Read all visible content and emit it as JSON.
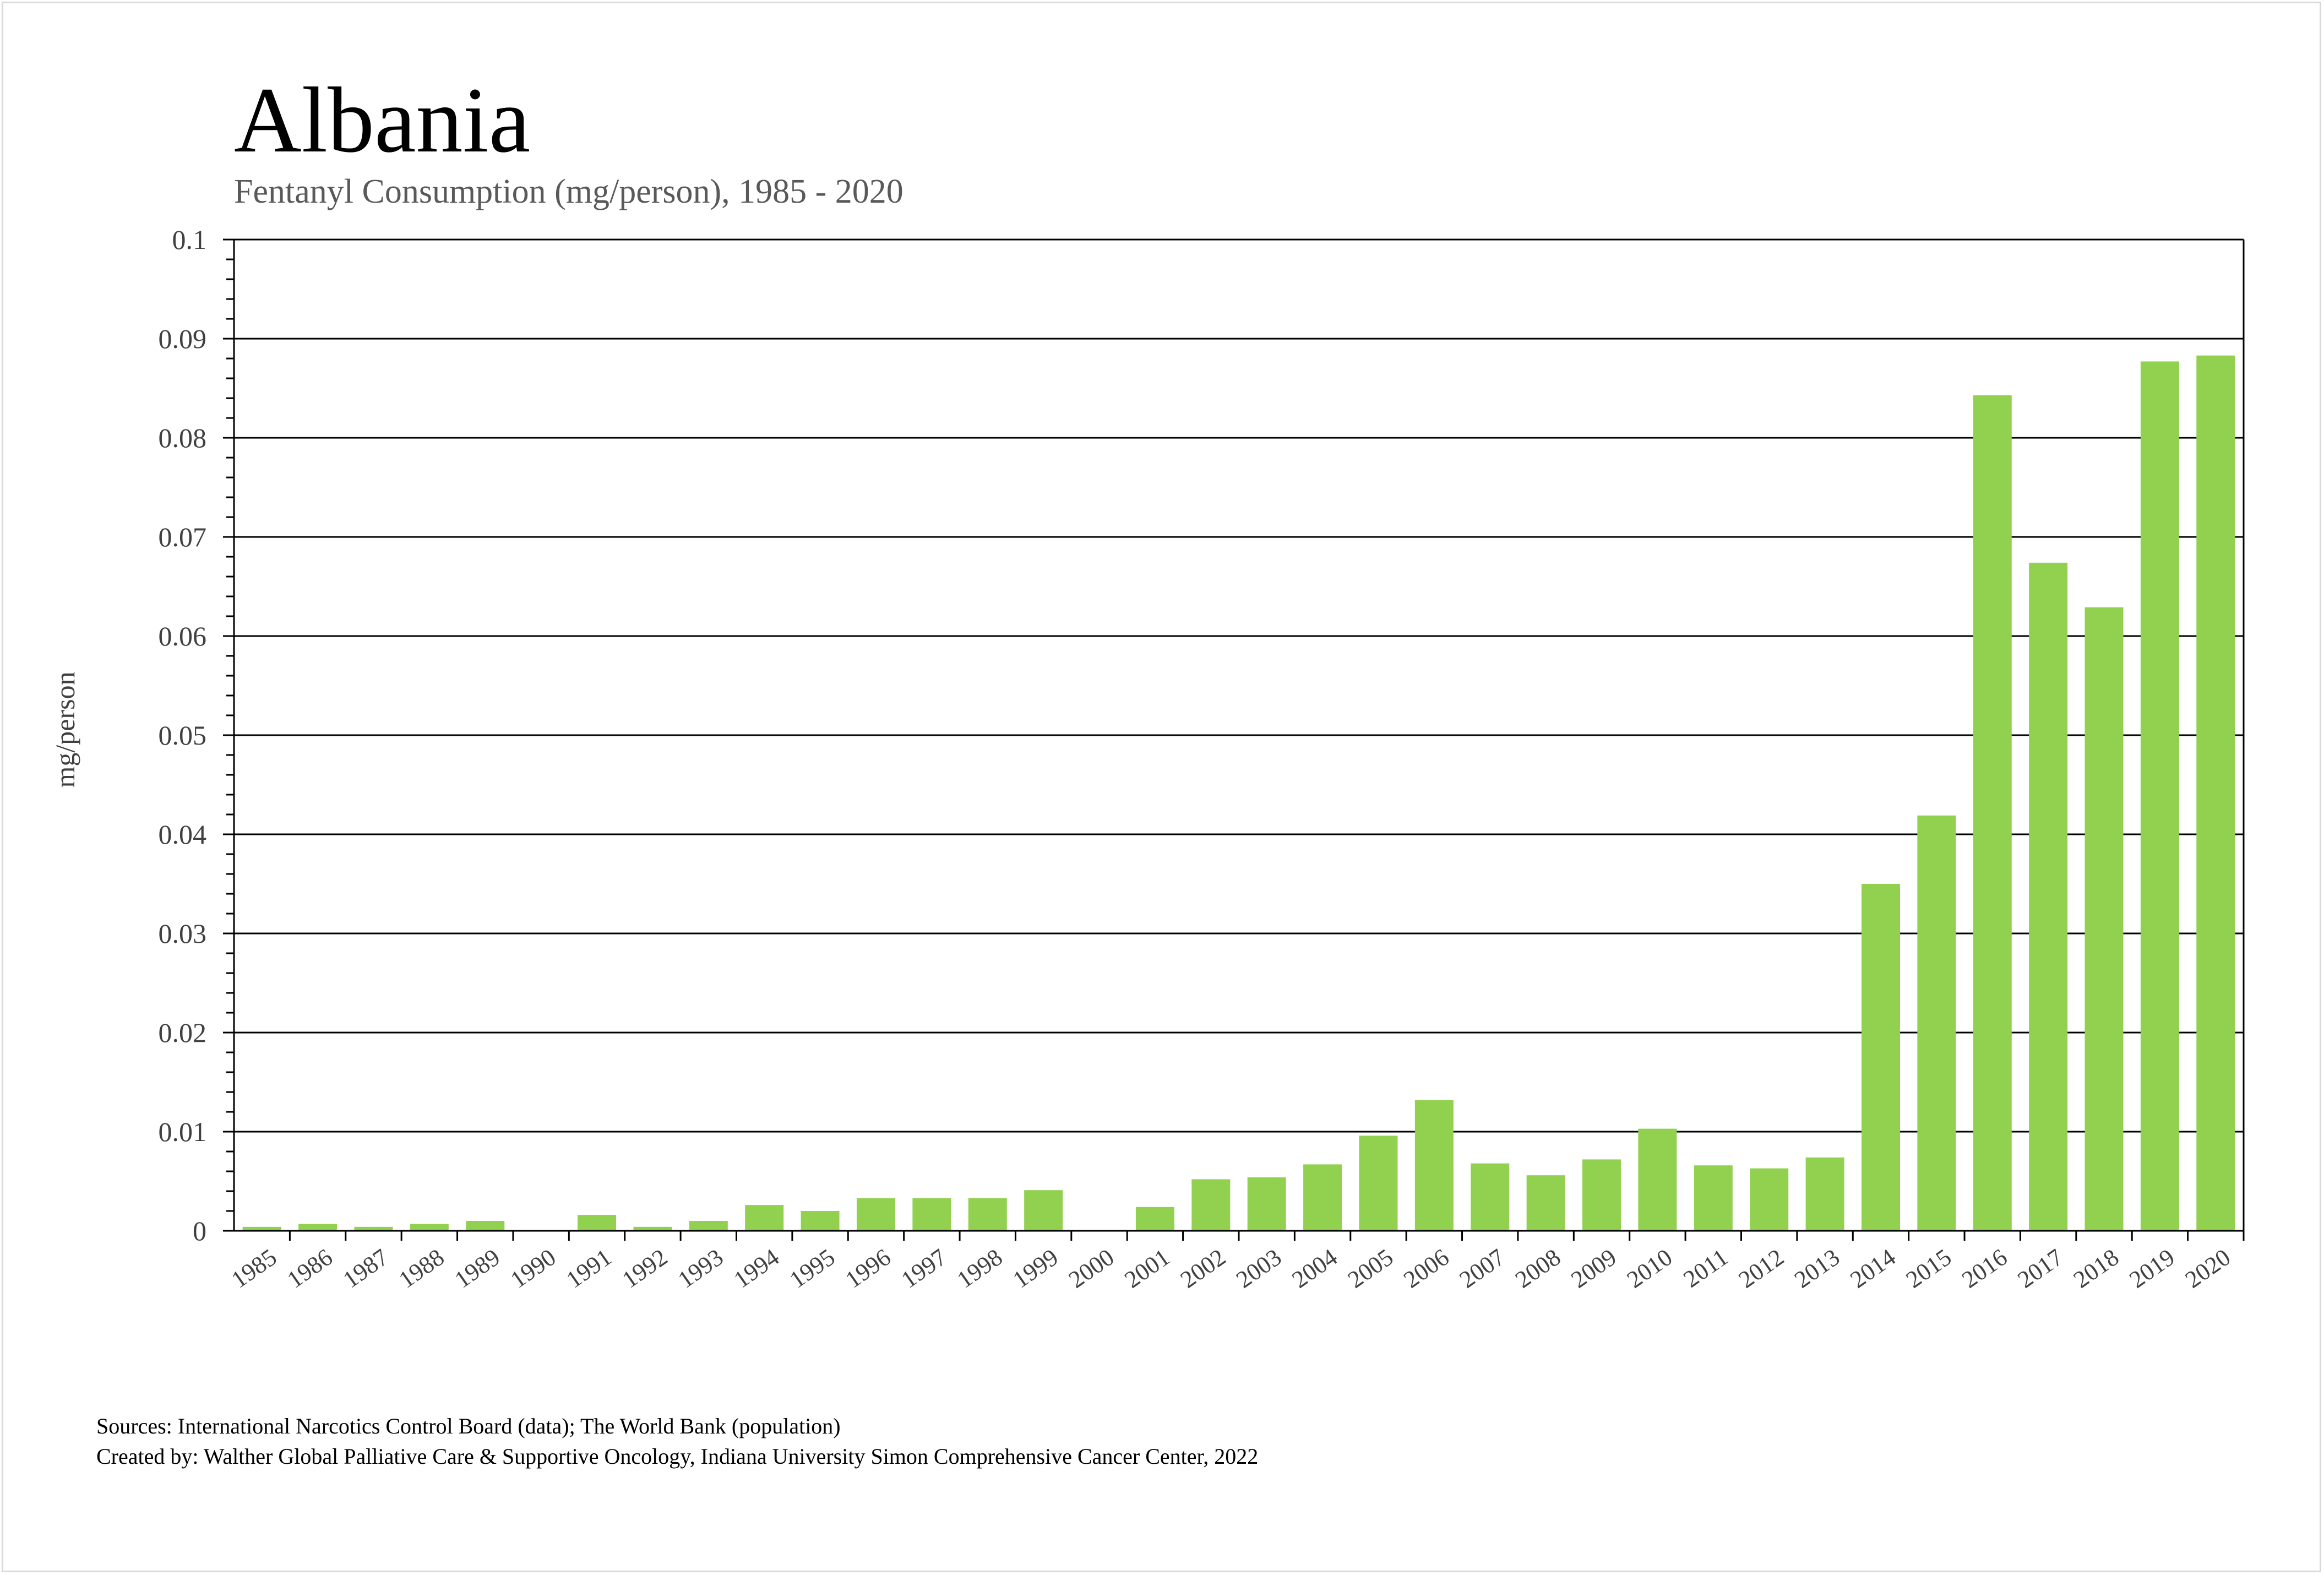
{
  "chart_data": {
    "type": "bar",
    "title": "Albania",
    "subtitle": "Fentanyl Consumption (mg/person), 1985 - 2020",
    "xlabel": "",
    "ylabel": "mg/person",
    "ylim": [
      0,
      0.1
    ],
    "yticks": [
      "0",
      "0.01",
      "0.02",
      "0.03",
      "0.04",
      "0.05",
      "0.06",
      "0.07",
      "0.08",
      "0.09",
      "0.1"
    ],
    "ytick_values": [
      0,
      0.01,
      0.02,
      0.03,
      0.04,
      0.05,
      0.06,
      0.07,
      0.08,
      0.09,
      0.1
    ],
    "grid": true,
    "categories": [
      "1985",
      "1986",
      "1987",
      "1988",
      "1989",
      "1990",
      "1991",
      "1992",
      "1993",
      "1994",
      "1995",
      "1996",
      "1997",
      "1998",
      "1999",
      "2000",
      "2001",
      "2002",
      "2003",
      "2004",
      "2005",
      "2006",
      "2007",
      "2008",
      "2009",
      "2010",
      "2011",
      "2012",
      "2013",
      "2014",
      "2015",
      "2016",
      "2017",
      "2018",
      "2019",
      "2020"
    ],
    "values": [
      0.0004,
      0.0007,
      0.0004,
      0.0007,
      0.001,
      0.0,
      0.0016,
      0.0004,
      0.001,
      0.0026,
      0.002,
      0.0033,
      0.0033,
      0.0033,
      0.0041,
      0.0,
      0.0024,
      0.0052,
      0.0054,
      0.0067,
      0.0096,
      0.0132,
      0.0068,
      0.0056,
      0.0072,
      0.0103,
      0.0066,
      0.0063,
      0.0074,
      0.035,
      0.0419,
      0.0843,
      0.0674,
      0.0629,
      0.0877,
      0.0883
    ],
    "bar_color": "#92d050"
  },
  "footer": {
    "sources": "Sources: International Narcotics Control Board (data); The World Bank (population)",
    "created_by": "Created by: Walther Global Palliative Care & Supportive Oncology, Indiana University Simon Comprehensive Cancer Center, 2022"
  }
}
